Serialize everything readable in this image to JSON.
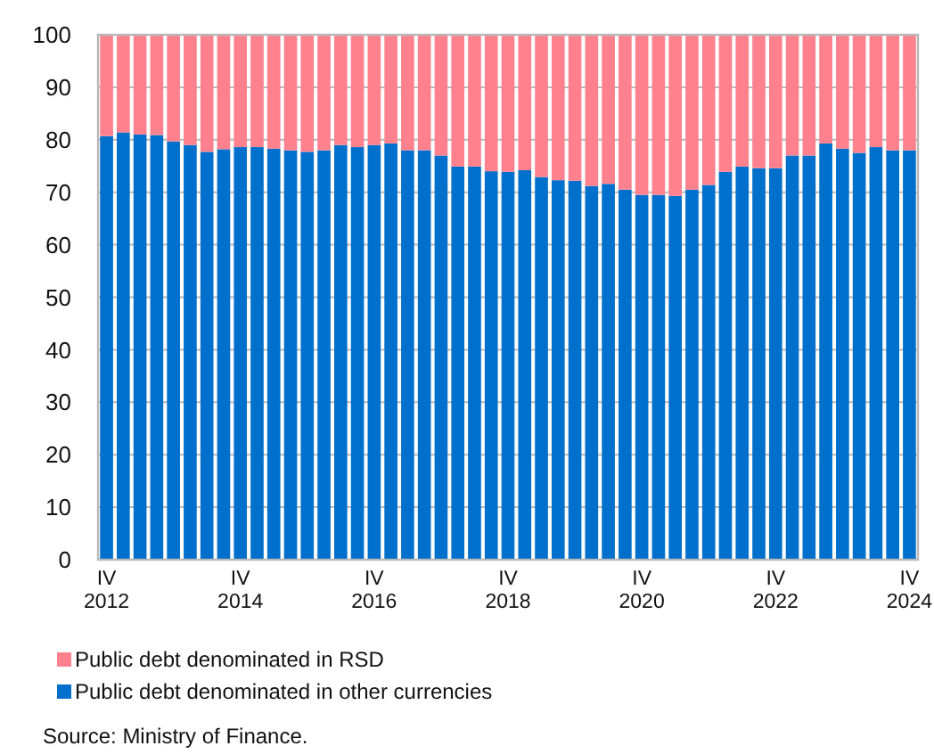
{
  "chart_data": {
    "type": "bar",
    "stacked": true,
    "categories": [
      "IV\n2012",
      null,
      null,
      null,
      null,
      null,
      null,
      null,
      "IV\n2014",
      null,
      null,
      null,
      null,
      null,
      null,
      null,
      "IV\n2016",
      null,
      null,
      null,
      null,
      null,
      null,
      null,
      "IV\n2018",
      null,
      null,
      null,
      null,
      null,
      null,
      null,
      "IV\n2020",
      null,
      null,
      null,
      null,
      null,
      null,
      null,
      "IV\n2022",
      null,
      null,
      null,
      null,
      null,
      null,
      null,
      "IV\n2024"
    ],
    "series": [
      {
        "name": "Public debt denominated in other currencies",
        "color": "#0070cc",
        "values": [
          80.7,
          81.4,
          81.0,
          80.9,
          79.7,
          79.0,
          77.7,
          78.2,
          78.6,
          78.6,
          78.3,
          78.0,
          77.7,
          78.0,
          79.0,
          78.6,
          79.0,
          79.3,
          78.0,
          78.0,
          77.0,
          74.9,
          74.9,
          74.0,
          73.9,
          74.2,
          72.9,
          72.3,
          72.2,
          71.2,
          71.6,
          70.5,
          69.5,
          69.5,
          69.3,
          70.5,
          71.4,
          73.9,
          74.9,
          74.6,
          74.6,
          77.0,
          77.0,
          79.3,
          78.3,
          77.5,
          78.6,
          78.0,
          78.0
        ]
      },
      {
        "name": "Public debt denominated in RSD",
        "color": "#ff818e",
        "values": [
          19.3,
          18.6,
          19.0,
          19.1,
          20.3,
          21.0,
          22.3,
          21.8,
          21.4,
          21.4,
          21.7,
          22.0,
          22.3,
          22.0,
          21.0,
          21.4,
          21.0,
          20.7,
          22.0,
          22.0,
          23.0,
          25.1,
          25.1,
          26.0,
          26.1,
          25.8,
          27.1,
          27.7,
          27.8,
          28.8,
          28.4,
          29.5,
          30.5,
          30.5,
          30.7,
          29.5,
          28.6,
          26.1,
          25.1,
          25.4,
          25.4,
          23.0,
          23.0,
          20.7,
          21.7,
          22.5,
          21.4,
          22.0,
          22.0
        ]
      }
    ],
    "ylim": [
      0,
      100
    ],
    "yticks": [
      0,
      10,
      20,
      30,
      40,
      50,
      60,
      70,
      80,
      90,
      100
    ],
    "grid": "y",
    "legend": "bottom",
    "annotations": [
      "Source: Ministry of Finance."
    ]
  }
}
